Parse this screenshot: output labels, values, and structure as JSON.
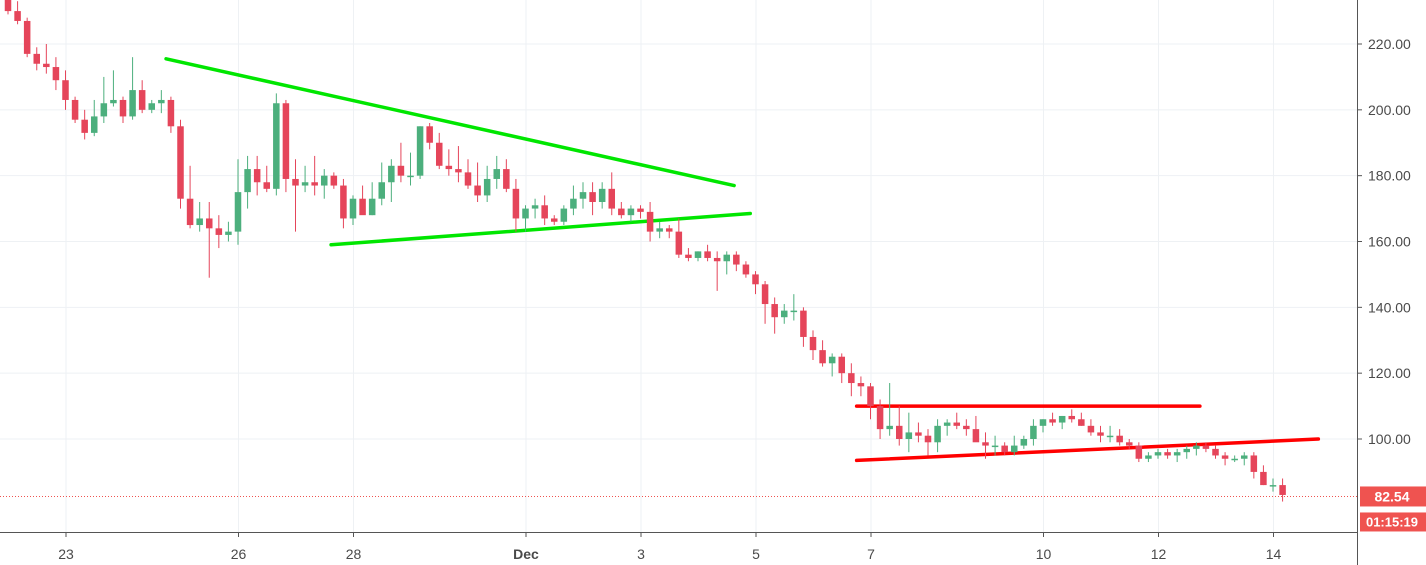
{
  "chart_data": {
    "type": "candlestick",
    "y_axis": {
      "ticks": [
        "220.00",
        "200.00",
        "180.00",
        "160.00",
        "140.00",
        "120.00",
        "100.00"
      ],
      "tick_values": [
        220,
        200,
        180,
        160,
        140,
        120,
        100
      ],
      "range": [
        71,
        235
      ],
      "position": "right"
    },
    "x_axis": {
      "labels": [
        {
          "text": "23",
          "day": 0,
          "bold": false
        },
        {
          "text": "26",
          "day": 3,
          "bold": false
        },
        {
          "text": "28",
          "day": 5,
          "bold": false
        },
        {
          "text": "Dec",
          "day": 8,
          "bold": true
        },
        {
          "text": "3",
          "day": 10,
          "bold": false
        },
        {
          "text": "5",
          "day": 12,
          "bold": false
        },
        {
          "text": "7",
          "day": 14,
          "bold": false
        },
        {
          "text": "10",
          "day": 17,
          "bold": false
        },
        {
          "text": "12",
          "day": 19,
          "bold": false
        },
        {
          "text": "14",
          "day": 21,
          "bold": false
        }
      ]
    },
    "candles_per_day": 6,
    "candles": [
      [
        236,
        237,
        229,
        230
      ],
      [
        230,
        233,
        226,
        227
      ],
      [
        227,
        228,
        216,
        217
      ],
      [
        217,
        219,
        212,
        214
      ],
      [
        214,
        220,
        211,
        213
      ],
      [
        213,
        216,
        206,
        209
      ],
      [
        209,
        212,
        200,
        203
      ],
      [
        203,
        204,
        196,
        197
      ],
      [
        197,
        200,
        191,
        193
      ],
      [
        193,
        203,
        192,
        198
      ],
      [
        198,
        210,
        196,
        202
      ],
      [
        202,
        212,
        201,
        203
      ],
      [
        203,
        204,
        196,
        198
      ],
      [
        198,
        216,
        197,
        206
      ],
      [
        206,
        209,
        199,
        200
      ],
      [
        200,
        203,
        199,
        202
      ],
      [
        202,
        206,
        199,
        203
      ],
      [
        203,
        204,
        193,
        195
      ],
      [
        195,
        197,
        170,
        173
      ],
      [
        173,
        183,
        164,
        165
      ],
      [
        165,
        172,
        163,
        167
      ],
      [
        167,
        172,
        149,
        164
      ],
      [
        164,
        168,
        158,
        162
      ],
      [
        162,
        166,
        160,
        163
      ],
      [
        163,
        185,
        159,
        175
      ],
      [
        175,
        186,
        170,
        182
      ],
      [
        182,
        186,
        174,
        178
      ],
      [
        178,
        183,
        175,
        176
      ],
      [
        176,
        205,
        174,
        202
      ],
      [
        202,
        203,
        175,
        179
      ],
      [
        179,
        185,
        163,
        177
      ],
      [
        177,
        183,
        175,
        178
      ],
      [
        178,
        186,
        174,
        177
      ],
      [
        177,
        182,
        173,
        180
      ],
      [
        180,
        181,
        176,
        177
      ],
      [
        177,
        179,
        164,
        167
      ],
      [
        167,
        174,
        165,
        173
      ],
      [
        173,
        177,
        169,
        168
      ],
      [
        168,
        178,
        168,
        173
      ],
      [
        173,
        184,
        171,
        178
      ],
      [
        178,
        185,
        172,
        183
      ],
      [
        183,
        190,
        178,
        180
      ],
      [
        180,
        187,
        177,
        180
      ],
      [
        180,
        195,
        179,
        195
      ],
      [
        195,
        196,
        188,
        190
      ],
      [
        190,
        193,
        182,
        183
      ],
      [
        183,
        188,
        180,
        182
      ],
      [
        182,
        189,
        178,
        181
      ],
      [
        181,
        185,
        176,
        177
      ],
      [
        177,
        184,
        172,
        174
      ],
      [
        174,
        183,
        172,
        179
      ],
      [
        179,
        186,
        176,
        182
      ],
      [
        182,
        185,
        175,
        176
      ],
      [
        176,
        179,
        163,
        167
      ],
      [
        167,
        171,
        163,
        170
      ],
      [
        170,
        173,
        167,
        171
      ],
      [
        171,
        174,
        165,
        167
      ],
      [
        167,
        168,
        165,
        166
      ],
      [
        166,
        171,
        165,
        170
      ],
      [
        170,
        177,
        168,
        173
      ],
      [
        173,
        178,
        170,
        175
      ],
      [
        175,
        178,
        168,
        172
      ],
      [
        172,
        178,
        170,
        176
      ],
      [
        176,
        181,
        168,
        170
      ],
      [
        170,
        172,
        167,
        168
      ],
      [
        168,
        171,
        166,
        170
      ],
      [
        170,
        171,
        167,
        169
      ],
      [
        169,
        172,
        160,
        163
      ],
      [
        163,
        166,
        161,
        164
      ],
      [
        164,
        165,
        161,
        163
      ],
      [
        163,
        167,
        155,
        156
      ],
      [
        156,
        158,
        154,
        155
      ],
      [
        155,
        157,
        154,
        157
      ],
      [
        157,
        159,
        154,
        155
      ],
      [
        155,
        157,
        145,
        154
      ],
      [
        154,
        157,
        150,
        156
      ],
      [
        156,
        157,
        151,
        153
      ],
      [
        153,
        154,
        149,
        150
      ],
      [
        150,
        151,
        144,
        147
      ],
      [
        147,
        148,
        135,
        141
      ],
      [
        141,
        143,
        132,
        137
      ],
      [
        137,
        141,
        135,
        139
      ],
      [
        139,
        144,
        136,
        139
      ],
      [
        139,
        140,
        128,
        131
      ],
      [
        131,
        133,
        124,
        127
      ],
      [
        127,
        130,
        122,
        123
      ],
      [
        123,
        126,
        119,
        125
      ],
      [
        125,
        126,
        117,
        120
      ],
      [
        120,
        123,
        113,
        117
      ],
      [
        117,
        119,
        113,
        116
      ],
      [
        116,
        117,
        106,
        110
      ],
      [
        110,
        112,
        100,
        103
      ],
      [
        103,
        117,
        101,
        104
      ],
      [
        104,
        110,
        98,
        100
      ],
      [
        100,
        108,
        96,
        102
      ],
      [
        102,
        105,
        99,
        101
      ],
      [
        101,
        103,
        95,
        99
      ],
      [
        99,
        106,
        96,
        104
      ],
      [
        104,
        106,
        101,
        105
      ],
      [
        105,
        108,
        103,
        104
      ],
      [
        104,
        106,
        101,
        103
      ],
      [
        103,
        107,
        100,
        99
      ],
      [
        99,
        102,
        94,
        98
      ],
      [
        98,
        101,
        95,
        98
      ],
      [
        98,
        99,
        95,
        96
      ],
      [
        96,
        101,
        95,
        98
      ],
      [
        98,
        101,
        97,
        100
      ],
      [
        100,
        106,
        98,
        104
      ],
      [
        104,
        106,
        102,
        106
      ],
      [
        106,
        108,
        104,
        105
      ],
      [
        105,
        107,
        103,
        107
      ],
      [
        107,
        109,
        105,
        106
      ],
      [
        106,
        108,
        104,
        104
      ],
      [
        104,
        106,
        101,
        102
      ],
      [
        102,
        104,
        99,
        101
      ],
      [
        101,
        104,
        99,
        101
      ],
      [
        101,
        103,
        98,
        99
      ],
      [
        99,
        100,
        97,
        98
      ],
      [
        98,
        99,
        93,
        94
      ],
      [
        94,
        96,
        93,
        95
      ],
      [
        95,
        97,
        94,
        96
      ],
      [
        96,
        97,
        94,
        95
      ],
      [
        95,
        97,
        93,
        96
      ],
      [
        96,
        98,
        94,
        97
      ],
      [
        97,
        99,
        95,
        98
      ],
      [
        98,
        99,
        96,
        97
      ],
      [
        97,
        98,
        94,
        95
      ],
      [
        95,
        96,
        92,
        94
      ],
      [
        94,
        95,
        93,
        94
      ],
      [
        94,
        96,
        92,
        95
      ],
      [
        95,
        96,
        88,
        90
      ],
      [
        90,
        92,
        86,
        86
      ],
      [
        86,
        88,
        84,
        86
      ],
      [
        86,
        88,
        81,
        83
      ]
    ],
    "trendlines": [
      {
        "color": "#00e600",
        "from": {
          "day": 1.74,
          "price": 215.5
        },
        "to": {
          "day": 11.62,
          "price": 177
        }
      },
      {
        "color": "#00e600",
        "from": {
          "day": 4.61,
          "price": 159
        },
        "to": {
          "day": 11.9,
          "price": 168.5
        }
      },
      {
        "color": "#ff0000",
        "from": {
          "day": 13.75,
          "price": 110
        },
        "to": {
          "day": 19.72,
          "price": 110
        }
      },
      {
        "color": "#ff0000",
        "from": {
          "day": 13.75,
          "price": 93.5
        },
        "to": {
          "day": 21.78,
          "price": 100
        }
      }
    ],
    "current_price": {
      "value": 82.54,
      "label": "82.54",
      "countdown": "01:15:19",
      "color": "#ef5350"
    },
    "colors": {
      "up": "#4caf7d",
      "down": "#e5455a",
      "grid": "#eef1f4",
      "axis_text": "#4a4a4a"
    },
    "grid": true
  }
}
